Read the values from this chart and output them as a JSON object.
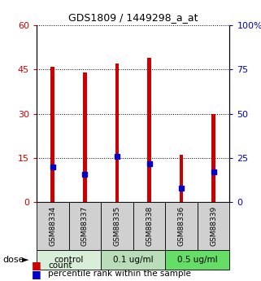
{
  "title": "GDS1809 / 1449298_a_at",
  "samples": [
    "GSM88334",
    "GSM88337",
    "GSM88335",
    "GSM88338",
    "GSM88336",
    "GSM88339"
  ],
  "counts": [
    46,
    44,
    47,
    49,
    16,
    30
  ],
  "percentile_ranks": [
    20,
    16,
    26,
    22,
    8,
    17
  ],
  "group_labels": [
    "control",
    "0.1 ug/ml",
    "0.5 ug/ml"
  ],
  "group_sizes": [
    2,
    2,
    2
  ],
  "group_colors": [
    "#d8eed8",
    "#b8ddb8",
    "#78e878"
  ],
  "bar_color": "#cc0000",
  "percentile_color": "#0000cc",
  "left_yticks": [
    0,
    15,
    30,
    45,
    60
  ],
  "right_yticks": [
    0,
    25,
    50,
    75,
    100
  ],
  "ylim_left": [
    0,
    60
  ],
  "ylim_right": [
    0,
    100
  ],
  "left_ycolor": "#cc0000",
  "right_ycolor": "#0000cc",
  "bar_width": 0.12,
  "legend_count": "count",
  "legend_pct": "percentile rank within the sample",
  "sample_box_color": "#d0d0d0",
  "figsize": [
    3.21,
    3.45
  ],
  "dpi": 100
}
